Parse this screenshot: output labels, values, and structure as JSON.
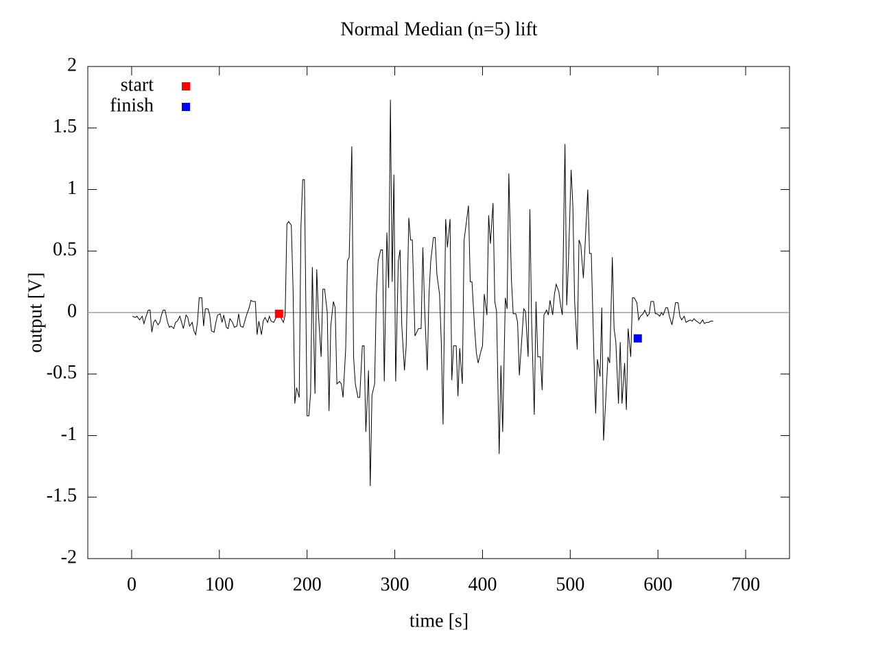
{
  "chart_data": {
    "type": "line",
    "title": "Normal  Median (n=5) lift",
    "x_label": "time [s]",
    "y_label": "output [V]",
    "xlim": [
      -50,
      750
    ],
    "xticks": [
      0,
      100,
      200,
      300,
      400,
      500,
      600,
      700
    ],
    "ylim": [
      -2,
      2
    ],
    "yticks": [
      -2,
      -1.5,
      -1,
      -0.5,
      0,
      0.5,
      1,
      1.5,
      2
    ],
    "zero_line": true,
    "color": "#000000",
    "x": [
      1,
      4,
      6,
      9,
      12,
      14,
      16,
      19,
      21,
      23,
      25,
      27,
      30,
      32,
      34,
      36,
      38,
      41,
      43,
      45,
      48,
      50,
      52,
      55,
      57,
      59,
      62,
      64,
      66,
      69,
      71,
      73,
      75,
      77,
      80,
      82,
      84,
      87,
      89,
      91,
      94,
      96,
      98,
      101,
      103,
      105,
      108,
      110,
      112,
      115,
      117,
      120,
      122,
      124,
      127,
      129,
      131,
      134,
      136,
      138,
      141,
      143,
      145,
      148,
      150,
      152,
      155,
      157,
      159,
      162,
      164,
      166,
      169,
      170,
      173,
      175,
      177,
      179,
      182,
      184,
      186,
      188,
      191,
      193,
      195,
      197,
      200,
      202,
      204,
      206,
      209,
      211,
      213,
      216,
      218,
      220,
      223,
      225,
      227,
      230,
      232,
      234,
      237,
      239,
      241,
      244,
      246,
      248,
      251,
      253,
      255,
      258,
      260,
      263,
      265,
      267,
      270,
      272,
      274,
      277,
      279,
      281,
      284,
      286,
      288,
      291,
      293,
      295,
      297,
      299,
      301,
      304,
      306,
      308,
      311,
      313,
      316,
      318,
      320,
      323,
      325,
      327,
      330,
      332,
      334,
      337,
      339,
      341,
      344,
      346,
      348,
      351,
      353,
      355,
      358,
      360,
      363,
      365,
      367,
      370,
      372,
      374,
      377,
      379,
      381,
      384,
      386,
      388,
      391,
      393,
      395,
      398,
      400,
      402,
      405,
      407,
      409,
      412,
      414,
      416,
      419,
      421,
      423,
      426,
      428,
      430,
      433,
      435,
      438,
      440,
      442,
      445,
      447,
      449,
      452,
      454,
      456,
      459,
      461,
      463,
      466,
      468,
      470,
      473,
      475,
      477,
      480,
      482,
      484,
      487,
      489,
      491,
      494,
      496,
      498,
      501,
      503,
      505,
      508,
      510,
      512,
      515,
      517,
      520,
      522,
      524,
      527,
      529,
      531,
      534,
      536,
      538,
      541,
      543,
      545,
      548,
      550,
      552,
      555,
      557,
      559,
      562,
      564,
      566,
      569,
      571,
      573,
      576,
      578,
      580,
      583,
      585,
      588,
      590,
      592,
      595,
      597,
      599,
      602,
      604,
      606,
      609,
      611,
      613,
      616,
      618,
      620,
      623,
      625,
      627,
      630,
      632,
      634,
      637,
      639,
      641,
      644,
      646,
      648,
      651,
      653,
      655,
      658,
      660,
      663
    ],
    "values": [
      -0.03,
      -0.04,
      -0.03,
      -0.06,
      -0.03,
      -0.09,
      -0.04,
      0.02,
      0.02,
      -0.16,
      -0.08,
      -0.06,
      -0.1,
      -0.08,
      -0.02,
      0.02,
      0.02,
      -0.08,
      -0.12,
      -0.11,
      -0.13,
      -0.08,
      -0.07,
      -0.03,
      -0.08,
      -0.13,
      -0.02,
      -0.04,
      -0.11,
      -0.08,
      -0.15,
      -0.18,
      -0.08,
      0.12,
      0.12,
      -0.11,
      0.03,
      0.03,
      -0.02,
      -0.15,
      -0.16,
      -0.08,
      -0.02,
      -0.01,
      -0.08,
      -0.02,
      -0.12,
      -0.13,
      -0.05,
      -0.08,
      -0.12,
      -0.11,
      -0.01,
      -0.11,
      -0.12,
      -0.07,
      -0.02,
      0.04,
      0.1,
      0.09,
      0.09,
      -0.18,
      -0.07,
      -0.18,
      -0.07,
      -0.04,
      -0.08,
      -0.03,
      -0.07,
      -0.08,
      -0.05,
      -0.03,
      -0.01,
      -0.04,
      -0.08,
      -0.02,
      0.72,
      0.74,
      0.71,
      0.2,
      -0.74,
      -0.61,
      -0.69,
      0.7,
      1.08,
      1.08,
      -0.84,
      -0.84,
      -0.66,
      0.37,
      -0.66,
      0.35,
      -0.02,
      -0.36,
      0.19,
      0.19,
      0,
      -0.8,
      -0.11,
      0.09,
      0.04,
      -0.58,
      -0.56,
      -0.58,
      -0.69,
      -0.3,
      0.42,
      0.45,
      1.35,
      -0.36,
      -0.58,
      -0.69,
      -0.69,
      -0.27,
      -0.27,
      -0.97,
      -0.47,
      -1.41,
      -0.67,
      -0.58,
      0.15,
      0.42,
      0.51,
      0.51,
      -0.56,
      0.65,
      0.2,
      1.73,
      0.25,
      1.12,
      -0.56,
      0.42,
      0.51,
      -0.11,
      -0.47,
      -0.27,
      0.77,
      0.59,
      0.59,
      -0.19,
      -0.16,
      -0.13,
      -0.13,
      0.53,
      0.03,
      -0.47,
      0.15,
      0.42,
      0.61,
      0.61,
      0.31,
      0.15,
      -0.24,
      -0.91,
      0.76,
      0.53,
      0.76,
      -0.55,
      -0.27,
      -0.27,
      -0.68,
      -0.29,
      -0.58,
      0.59,
      0.7,
      0.87,
      0.25,
      0.25,
      -0.13,
      -0.33,
      -0.41,
      -0.32,
      -0.27,
      0.15,
      -0.02,
      0.79,
      0.56,
      0.89,
      0.09,
      0.01,
      -1.15,
      -0.43,
      -0.97,
      0.12,
      0.03,
      1.13,
      0.26,
      -0.01,
      -0.01,
      -0.08,
      -0.51,
      -0.19,
      0.03,
      0.01,
      -0.36,
      0.84,
      -0.08,
      -0.83,
      0.09,
      -0.36,
      -0.36,
      -0.63,
      -0.02,
      0.02,
      -0.02,
      0.1,
      -0.02,
      0.15,
      0.23,
      0.17,
      0.06,
      -0.02,
      1.37,
      0.06,
      0.42,
      1.16,
      0.87,
      0.09,
      -0.3,
      0.59,
      0.55,
      0.28,
      0.56,
      1,
      0.48,
      0.48,
      -0.36,
      -0.82,
      -0.38,
      -0.52,
      0.04,
      -1.04,
      -0.64,
      -0.36,
      -0.41,
      0.45,
      -0.13,
      -0.24,
      -0.74,
      -0.24,
      -0.74,
      -0.41,
      -0.79,
      -0.13,
      -0.36,
      0.12,
      0.12,
      0.08,
      -0.06,
      -0.03,
      -0.01,
      0.02,
      -0.03,
      -0.01,
      0.09,
      0.09,
      -0.01,
      -0.01,
      -0.03,
      0,
      -0.02,
      0.04,
      0.04,
      -0.03,
      -0.1,
      -0.02,
      0.08,
      0.08,
      -0.03,
      -0.06,
      -0.03,
      -0.08,
      -0.07,
      -0.06,
      -0.07,
      -0.05,
      -0.07,
      -0.08,
      -0.09,
      -0.06,
      -0.09,
      -0.08,
      -0.08,
      -0.07,
      -0.07
    ],
    "series": [
      {
        "name": "start",
        "color": "#ff0000",
        "x": [
          168
        ],
        "values": [
          -0.01
        ]
      },
      {
        "name": "finish",
        "color": "#0000ff",
        "x": [
          577
        ],
        "values": [
          -0.21
        ]
      }
    ]
  }
}
